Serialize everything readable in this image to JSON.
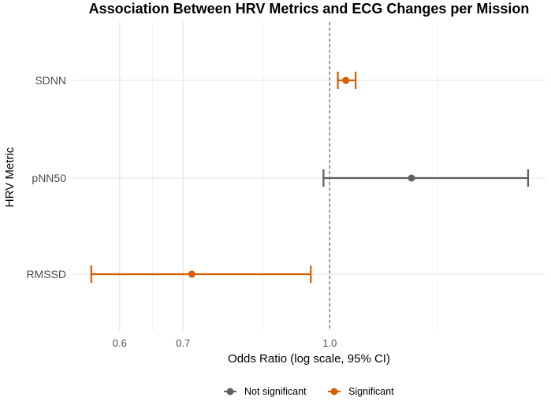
{
  "chart_data": {
    "type": "forest",
    "title": "Association Between HRV Metrics and ECG Changes per Mission",
    "xlabel": "Odds Ratio (log scale, 95% CI)",
    "ylabel": "HRV Metric",
    "x_scale": "log",
    "xlim": [
      0.535,
      1.69
    ],
    "x_ticks": [
      0.6,
      0.7,
      1.0
    ],
    "x_tick_labels": [
      "0.6",
      "0.7",
      "1.0"
    ],
    "x_minor_gridlines": [
      0.65,
      0.85,
      1.3
    ],
    "reference_line": 1.0,
    "categories": [
      "SDNN",
      "pNN50",
      "RMSSD"
    ],
    "points": [
      {
        "metric": "SDNN",
        "or": 1.04,
        "lower": 1.02,
        "upper": 1.065,
        "group": "Significant"
      },
      {
        "metric": "pNN50",
        "or": 1.22,
        "lower": 0.985,
        "upper": 1.62,
        "group": "Not significant"
      },
      {
        "metric": "RMSSD",
        "or": 0.715,
        "lower": 0.56,
        "upper": 0.955,
        "group": "Significant"
      }
    ],
    "legend": [
      {
        "label": "Not significant",
        "color": "#5f5f5f"
      },
      {
        "label": "Significant",
        "color": "#d55e00"
      }
    ],
    "legend_position": "bottom"
  }
}
